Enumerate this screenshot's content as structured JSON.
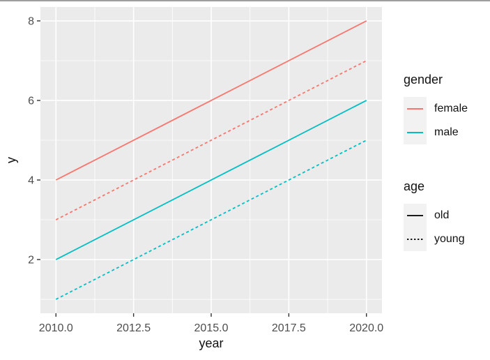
{
  "colors": {
    "panel_background": "#EBEBEB",
    "grid": "#FFFFFF",
    "tick_mark": "#333333",
    "tick_text": "#4D4D4D",
    "title_text": "#111111",
    "legend_key_background": "#F2F2F2",
    "top_border": "#9E9E9E",
    "female": "#F8766D",
    "male": "#00BFC4",
    "black_line": "#1A1A1A"
  },
  "chart_data": {
    "type": "line",
    "title": "",
    "xlabel": "year",
    "ylabel": "y",
    "xlim": [
      2009.5,
      2020.5
    ],
    "ylim": [
      0.65,
      8.35
    ],
    "grid": true,
    "legend_position": "right",
    "x_ticks": [
      {
        "value": 2010.0,
        "label": "2010.0"
      },
      {
        "value": 2012.5,
        "label": "2012.5"
      },
      {
        "value": 2015.0,
        "label": "2015.0"
      },
      {
        "value": 2017.5,
        "label": "2017.5"
      },
      {
        "value": 2020.0,
        "label": "2020.0"
      }
    ],
    "y_ticks": [
      {
        "value": 2,
        "label": "2"
      },
      {
        "value": 4,
        "label": "4"
      },
      {
        "value": 6,
        "label": "6"
      },
      {
        "value": 8,
        "label": "8"
      }
    ],
    "x_minor_ticks": [
      2011.25,
      2013.75,
      2016.25,
      2018.75
    ],
    "y_minor_ticks": [
      1,
      3,
      5,
      7
    ],
    "series": [
      {
        "name": "female-old",
        "gender": "female",
        "age": "old",
        "color": "#F8766D",
        "linetype": "solid",
        "points": [
          [
            2010,
            4
          ],
          [
            2020,
            8
          ]
        ]
      },
      {
        "name": "female-young",
        "gender": "female",
        "age": "young",
        "color": "#F8766D",
        "linetype": "dashed",
        "points": [
          [
            2010,
            3
          ],
          [
            2020,
            7
          ]
        ]
      },
      {
        "name": "male-old",
        "gender": "male",
        "age": "old",
        "color": "#00BFC4",
        "linetype": "solid",
        "points": [
          [
            2010,
            2
          ],
          [
            2020,
            6
          ]
        ]
      },
      {
        "name": "male-young",
        "gender": "male",
        "age": "young",
        "color": "#00BFC4",
        "linetype": "dashed",
        "points": [
          [
            2010,
            1
          ],
          [
            2020,
            5
          ]
        ]
      }
    ]
  },
  "legend": {
    "gender": {
      "title": "gender",
      "items": [
        {
          "label": "female",
          "color": "#F8766D",
          "linetype": "solid"
        },
        {
          "label": "male",
          "color": "#00BFC4",
          "linetype": "solid"
        }
      ]
    },
    "age": {
      "title": "age",
      "items": [
        {
          "label": "old",
          "color": "#1A1A1A",
          "linetype": "solid"
        },
        {
          "label": "young",
          "color": "#1A1A1A",
          "linetype": "dashed"
        }
      ]
    }
  }
}
